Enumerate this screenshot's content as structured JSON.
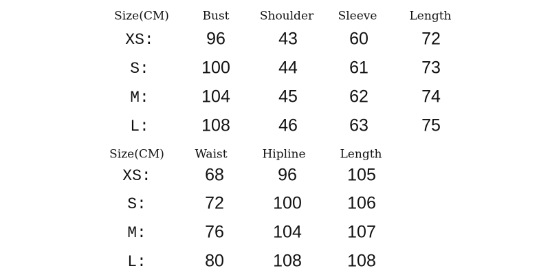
{
  "tables": [
    {
      "header": [
        "Size(CM)",
        "Bust",
        "Shoulder",
        "Sleeve",
        "Length"
      ],
      "rows": [
        [
          "XS:",
          96,
          43,
          60,
          72
        ],
        [
          "S:",
          100,
          44,
          61,
          73
        ],
        [
          "M:",
          104,
          45,
          62,
          74
        ],
        [
          "L:",
          108,
          46,
          63,
          75
        ]
      ]
    },
    {
      "header": [
        "Size(CM)",
        "Waist",
        "Hipline",
        "Length"
      ],
      "rows": [
        [
          "XS:",
          68,
          96,
          105
        ],
        [
          "S:",
          72,
          100,
          106
        ],
        [
          "M:",
          76,
          104,
          107
        ],
        [
          "L:",
          80,
          108,
          108
        ]
      ]
    }
  ]
}
